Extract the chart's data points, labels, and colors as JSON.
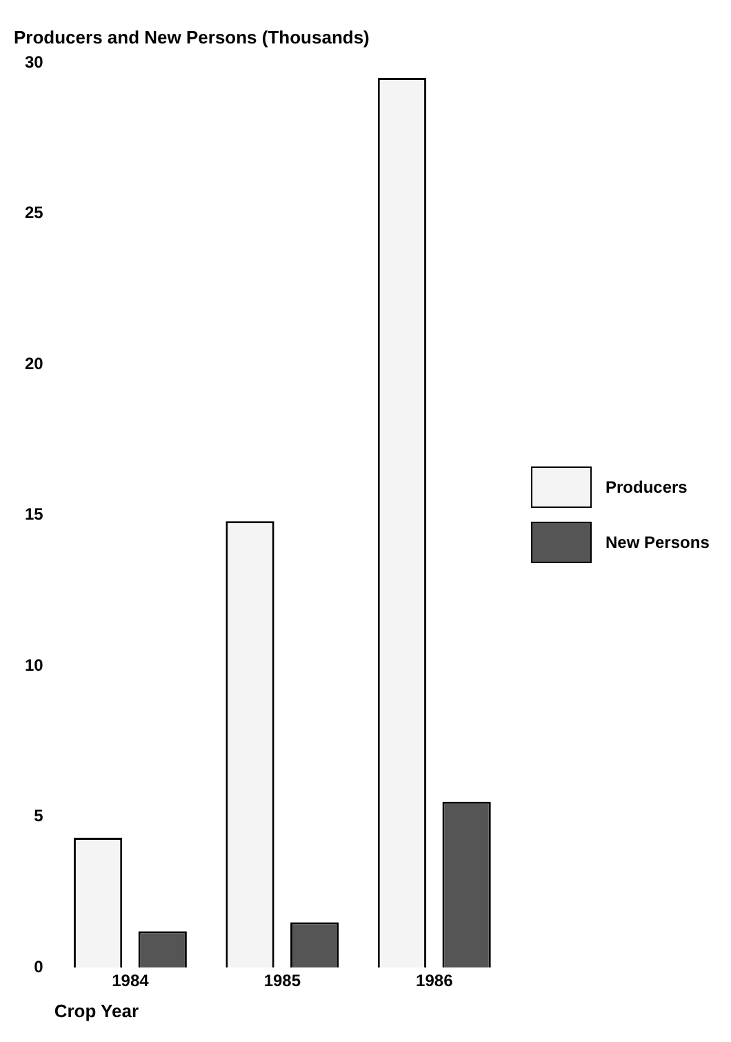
{
  "chart_data": {
    "type": "bar",
    "title": "Producers and New Persons (Thousands)",
    "xlabel": "Crop Year",
    "categories": [
      "1984",
      "1985",
      "1986"
    ],
    "series": [
      {
        "name": "Producers",
        "color": "#f4f4f4",
        "values": [
          4.3,
          14.8,
          29.5
        ]
      },
      {
        "name": "New Persons",
        "color": "#555555",
        "values": [
          1.2,
          1.5,
          5.5
        ]
      }
    ],
    "ylim": [
      0,
      30
    ],
    "yticks": [
      0,
      5,
      10,
      15,
      20,
      25,
      30
    ],
    "grid": false,
    "legend": "right"
  }
}
